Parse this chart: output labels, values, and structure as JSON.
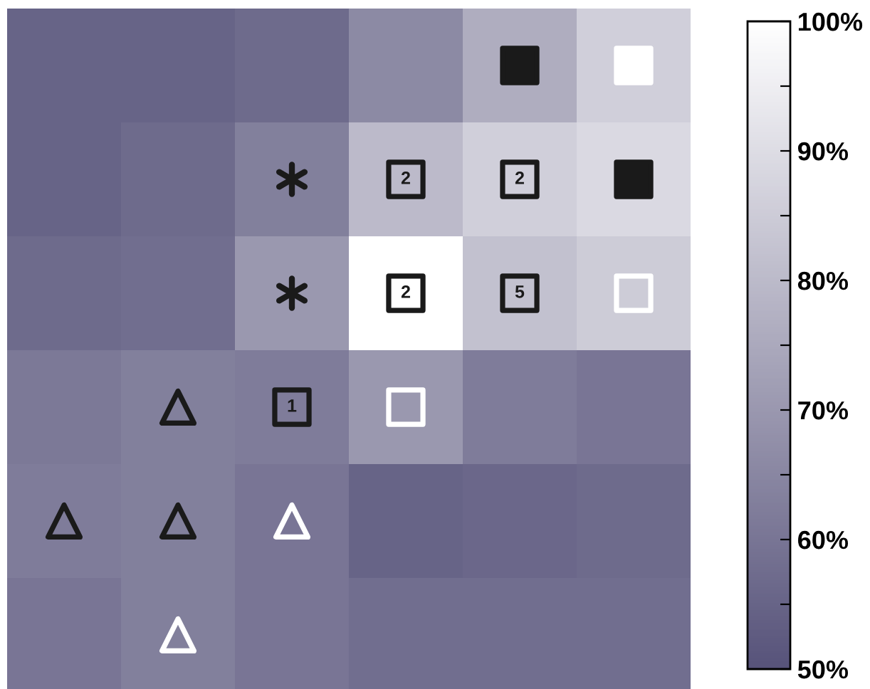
{
  "chart_data": {
    "type": "heatmap",
    "categories": [
      null,
      null,
      null,
      null,
      null,
      null
    ],
    "y_categories": [
      null,
      null,
      null,
      null,
      null,
      null
    ],
    "cells": [
      [
        55,
        55,
        57,
        66,
        76,
        86
      ],
      [
        55,
        57,
        63,
        80,
        86,
        89
      ],
      [
        57,
        58,
        70,
        100,
        82,
        85
      ],
      [
        61,
        63,
        62,
        70,
        62,
        60
      ],
      [
        62,
        63,
        60,
        55,
        56,
        57
      ],
      [
        60,
        63,
        60,
        58,
        58,
        58
      ]
    ],
    "annotations": [
      "2",
      "2",
      "2",
      "5",
      "1"
    ],
    "colors": [
      "#57537a",
      "#ffffff"
    ],
    "clim": [
      50,
      100
    ],
    "cticks": [
      {
        "value": 50,
        "label": "50%"
      },
      {
        "value": 55,
        "label": null
      },
      {
        "value": 60,
        "label": "60%"
      },
      {
        "value": 65,
        "label": null
      },
      {
        "value": 70,
        "label": "70%"
      },
      {
        "value": 75,
        "label": null
      },
      {
        "value": 80,
        "label": "80%"
      },
      {
        "value": 85,
        "label": null
      },
      {
        "value": 90,
        "label": "90%"
      },
      {
        "value": 95,
        "label": null
      },
      {
        "value": 100,
        "label": "100%"
      }
    ]
  }
}
